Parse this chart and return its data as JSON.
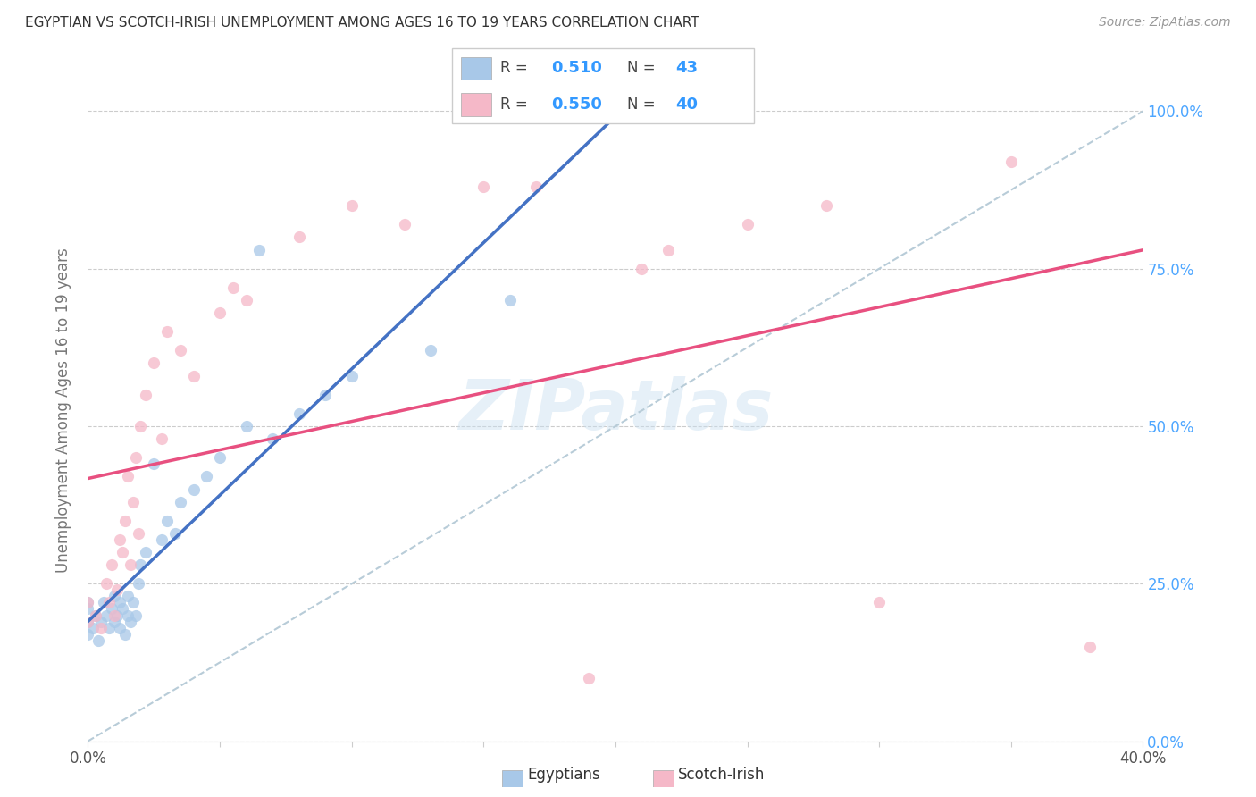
{
  "title": "EGYPTIAN VS SCOTCH-IRISH UNEMPLOYMENT AMONG AGES 16 TO 19 YEARS CORRELATION CHART",
  "source": "Source: ZipAtlas.com",
  "ylabel": "Unemployment Among Ages 16 to 19 years",
  "x_min": 0.0,
  "x_max": 0.4,
  "y_min": 0.0,
  "y_max": 1.05,
  "y_ticks": [
    0.0,
    0.25,
    0.5,
    0.75,
    1.0
  ],
  "y_tick_labels_right": [
    "0.0%",
    "25.0%",
    "50.0%",
    "75.0%",
    "100.0%"
  ],
  "x_ticks": [
    0.0,
    0.05,
    0.1,
    0.15,
    0.2,
    0.25,
    0.3,
    0.35,
    0.4
  ],
  "x_tick_labels": [
    "0.0%",
    "",
    "",
    "",
    "",
    "",
    "",
    "",
    "40.0%"
  ],
  "legend_R_blue": "0.510",
  "legend_N_blue": "43",
  "legend_R_pink": "0.550",
  "legend_N_pink": "40",
  "blue_color": "#a8c8e8",
  "pink_color": "#f5b8c8",
  "blue_line_color": "#4472c4",
  "pink_line_color": "#e85080",
  "dashed_line_color": "#b8ccd8",
  "scatter_alpha": 0.75,
  "scatter_size": 90,
  "watermark": "ZIPatlas",
  "egyptians_x": [
    0.0,
    0.0,
    0.0,
    0.0,
    0.002,
    0.003,
    0.004,
    0.005,
    0.006,
    0.007,
    0.008,
    0.009,
    0.01,
    0.01,
    0.011,
    0.012,
    0.012,
    0.013,
    0.014,
    0.015,
    0.015,
    0.016,
    0.017,
    0.018,
    0.019,
    0.02,
    0.022,
    0.025,
    0.028,
    0.03,
    0.033,
    0.035,
    0.04,
    0.045,
    0.05,
    0.06,
    0.065,
    0.07,
    0.08,
    0.09,
    0.1,
    0.13,
    0.16
  ],
  "egyptians_y": [
    0.17,
    0.19,
    0.21,
    0.22,
    0.18,
    0.2,
    0.16,
    0.19,
    0.22,
    0.2,
    0.18,
    0.21,
    0.19,
    0.23,
    0.2,
    0.18,
    0.22,
    0.21,
    0.17,
    0.2,
    0.23,
    0.19,
    0.22,
    0.2,
    0.25,
    0.28,
    0.3,
    0.44,
    0.32,
    0.35,
    0.33,
    0.38,
    0.4,
    0.42,
    0.45,
    0.5,
    0.78,
    0.48,
    0.52,
    0.55,
    0.58,
    0.62,
    0.7
  ],
  "scotchirish_x": [
    0.0,
    0.0,
    0.003,
    0.005,
    0.007,
    0.008,
    0.009,
    0.01,
    0.011,
    0.012,
    0.013,
    0.014,
    0.015,
    0.016,
    0.017,
    0.018,
    0.019,
    0.02,
    0.022,
    0.025,
    0.028,
    0.03,
    0.035,
    0.04,
    0.05,
    0.055,
    0.06,
    0.08,
    0.1,
    0.12,
    0.15,
    0.17,
    0.19,
    0.21,
    0.22,
    0.25,
    0.28,
    0.3,
    0.35,
    0.38
  ],
  "scotchirish_y": [
    0.19,
    0.22,
    0.2,
    0.18,
    0.25,
    0.22,
    0.28,
    0.2,
    0.24,
    0.32,
    0.3,
    0.35,
    0.42,
    0.28,
    0.38,
    0.45,
    0.33,
    0.5,
    0.55,
    0.6,
    0.48,
    0.65,
    0.62,
    0.58,
    0.68,
    0.72,
    0.7,
    0.8,
    0.85,
    0.82,
    0.88,
    0.88,
    0.1,
    0.75,
    0.78,
    0.82,
    0.85,
    0.22,
    0.92,
    0.15
  ]
}
